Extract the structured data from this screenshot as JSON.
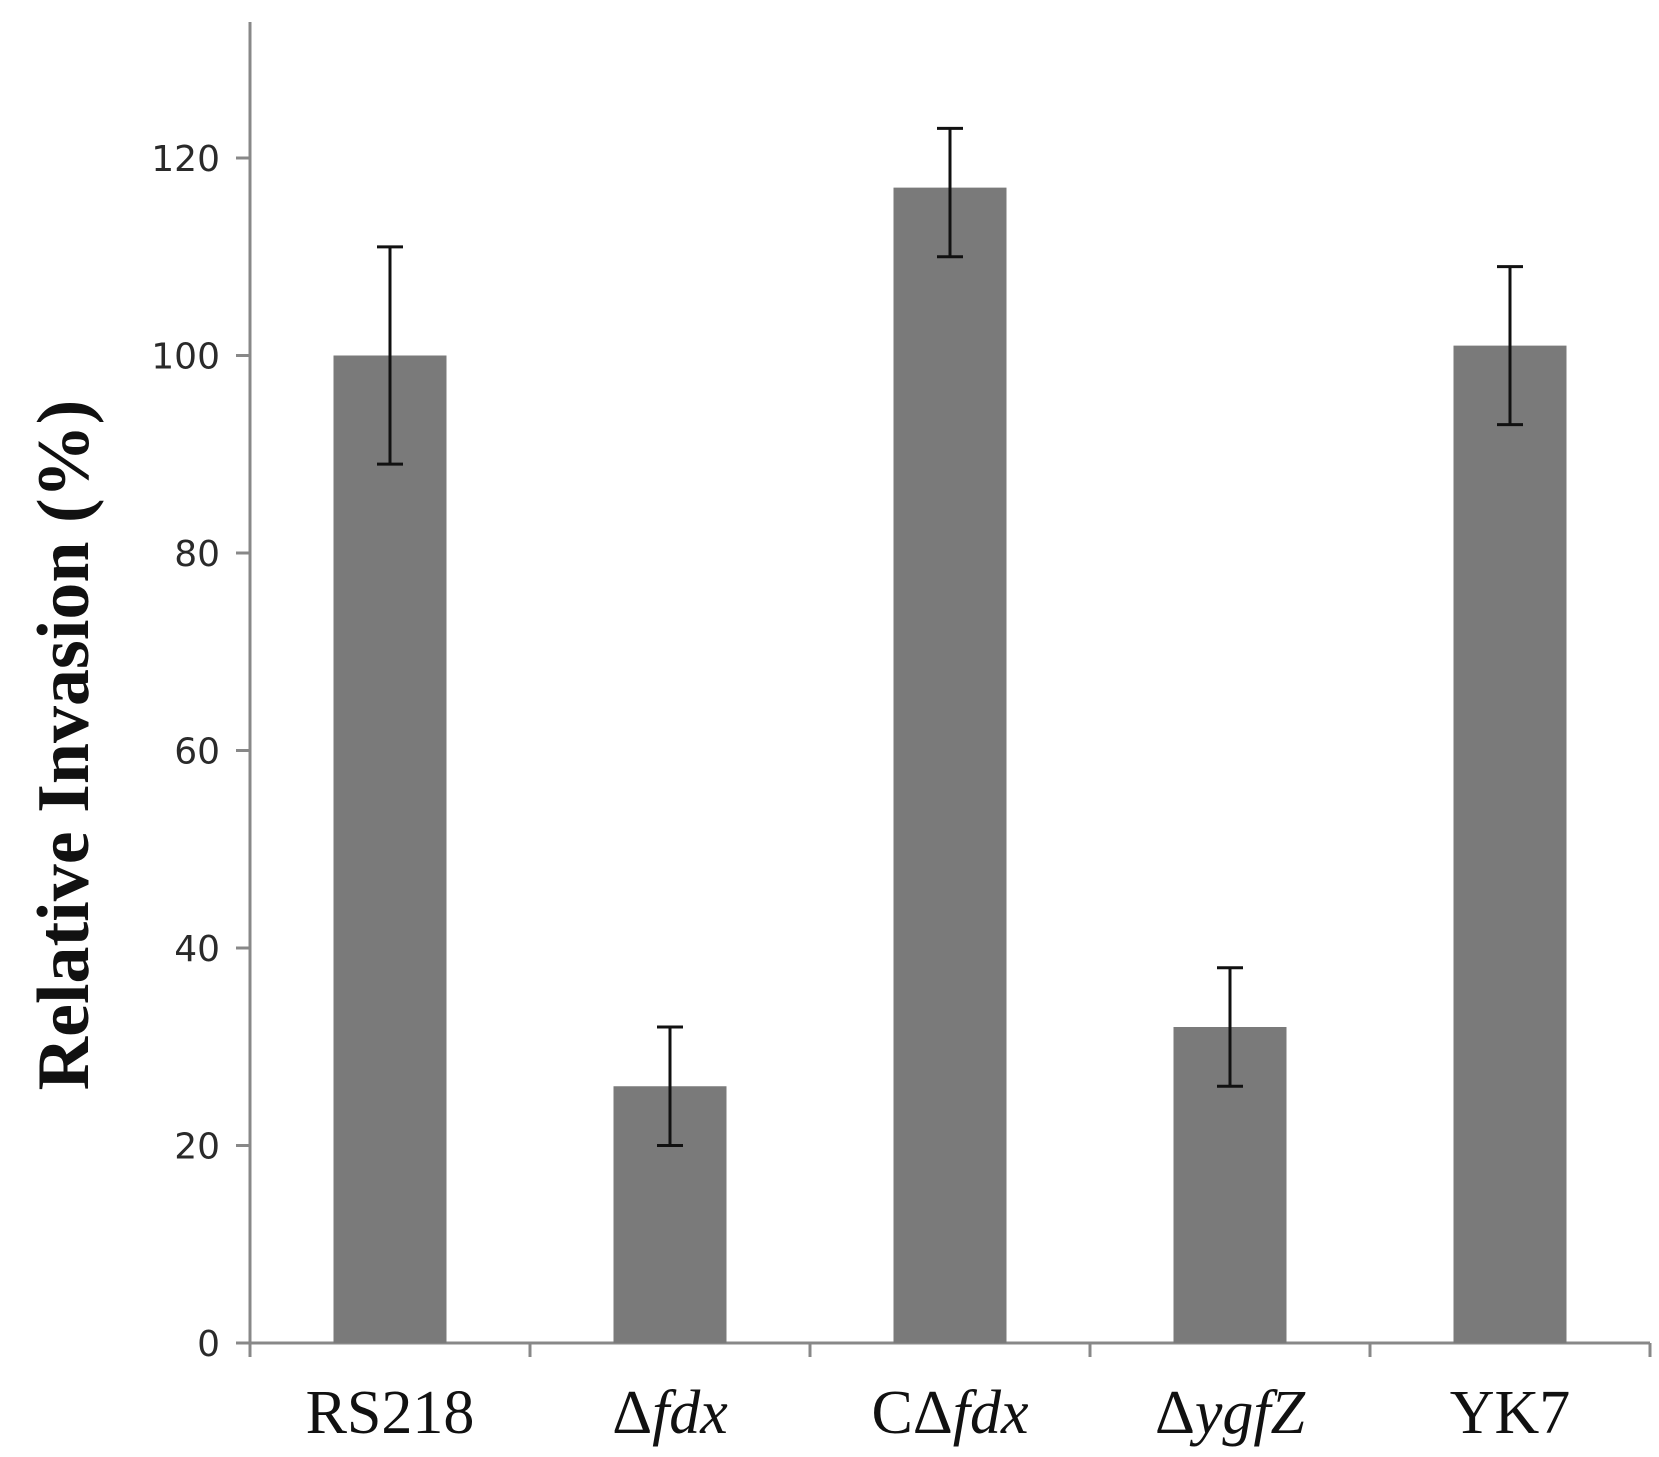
{
  "chart_data": {
    "type": "bar",
    "title": "",
    "xlabel": "",
    "ylabel": "Relative Invasion (%)",
    "ylim": [
      0,
      135
    ],
    "yticks": [
      0,
      20,
      40,
      60,
      80,
      100,
      120
    ],
    "grid": false,
    "categories": [
      {
        "prefix": "",
        "text": "RS218",
        "italic": false
      },
      {
        "prefix": "Δ",
        "text": "fdx",
        "italic": true
      },
      {
        "prefix": "CΔ",
        "text": "fdx",
        "italic": true
      },
      {
        "prefix": "Δ",
        "text": "ygfZ",
        "italic": true
      },
      {
        "prefix": "",
        "text": "YK7",
        "italic": false
      }
    ],
    "values": [
      100,
      26,
      117,
      32,
      101
    ],
    "error_low": [
      89,
      20,
      110,
      26,
      93
    ],
    "error_high": [
      111,
      32,
      123,
      38,
      109
    ],
    "colors": {
      "bar": "#7a7a7a",
      "axis": "#888888",
      "error": "#111111"
    }
  }
}
